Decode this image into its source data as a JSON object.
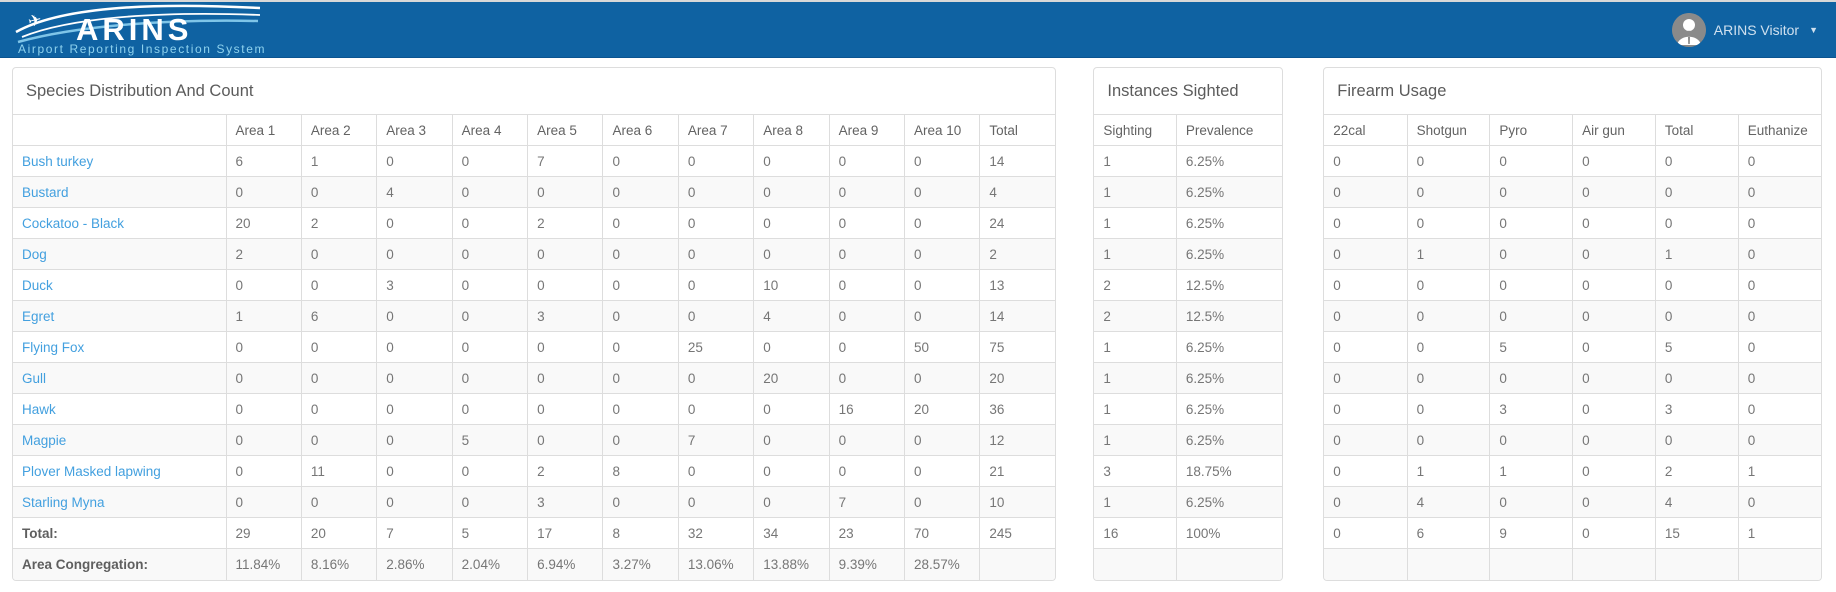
{
  "header": {
    "logo_title": "ARINS",
    "logo_subtitle": "Airport Reporting Inspection System",
    "user_label": "ARINS Visitor",
    "icons": {
      "caret_down": "▼",
      "plane": "✈",
      "avatar": "person-silhouette"
    },
    "colors": {
      "header_bg": "#0f62a2",
      "logo_accent": "#7fc5e8",
      "link_blue": "#43a0df"
    }
  },
  "species_table": {
    "title": "Species Distribution And Count",
    "columns": [
      "",
      "Area 1",
      "Area 2",
      "Area 3",
      "Area 4",
      "Area 5",
      "Area 6",
      "Area 7",
      "Area 8",
      "Area 9",
      "Area 10",
      "Total"
    ],
    "rows": [
      {
        "name": "Bush turkey",
        "values": [
          "6",
          "1",
          "0",
          "0",
          "7",
          "0",
          "0",
          "0",
          "0",
          "0",
          "14"
        ]
      },
      {
        "name": "Bustard",
        "values": [
          "0",
          "0",
          "4",
          "0",
          "0",
          "0",
          "0",
          "0",
          "0",
          "0",
          "4"
        ]
      },
      {
        "name": "Cockatoo - Black",
        "values": [
          "20",
          "2",
          "0",
          "0",
          "2",
          "0",
          "0",
          "0",
          "0",
          "0",
          "24"
        ]
      },
      {
        "name": "Dog",
        "values": [
          "2",
          "0",
          "0",
          "0",
          "0",
          "0",
          "0",
          "0",
          "0",
          "0",
          "2"
        ]
      },
      {
        "name": "Duck",
        "values": [
          "0",
          "0",
          "3",
          "0",
          "0",
          "0",
          "0",
          "10",
          "0",
          "0",
          "13"
        ]
      },
      {
        "name": "Egret",
        "values": [
          "1",
          "6",
          "0",
          "0",
          "3",
          "0",
          "0",
          "4",
          "0",
          "0",
          "14"
        ]
      },
      {
        "name": "Flying Fox",
        "values": [
          "0",
          "0",
          "0",
          "0",
          "0",
          "0",
          "25",
          "0",
          "0",
          "50",
          "75"
        ]
      },
      {
        "name": "Gull",
        "values": [
          "0",
          "0",
          "0",
          "0",
          "0",
          "0",
          "0",
          "20",
          "0",
          "0",
          "20"
        ]
      },
      {
        "name": "Hawk",
        "values": [
          "0",
          "0",
          "0",
          "0",
          "0",
          "0",
          "0",
          "0",
          "16",
          "20",
          "36"
        ]
      },
      {
        "name": "Magpie",
        "values": [
          "0",
          "0",
          "0",
          "5",
          "0",
          "0",
          "7",
          "0",
          "0",
          "0",
          "12"
        ]
      },
      {
        "name": "Plover Masked lapwing",
        "values": [
          "0",
          "11",
          "0",
          "0",
          "2",
          "8",
          "0",
          "0",
          "0",
          "0",
          "21"
        ]
      },
      {
        "name": "Starling Myna",
        "values": [
          "0",
          "0",
          "0",
          "0",
          "3",
          "0",
          "0",
          "0",
          "7",
          "0",
          "10"
        ]
      }
    ],
    "total_row": {
      "label": "Total:",
      "values": [
        "29",
        "20",
        "7",
        "5",
        "17",
        "8",
        "32",
        "34",
        "23",
        "70",
        "245"
      ]
    },
    "congregation_row": {
      "label": "Area Congregation:",
      "values": [
        "11.84%",
        "8.16%",
        "2.86%",
        "2.04%",
        "6.94%",
        "3.27%",
        "13.06%",
        "13.88%",
        "9.39%",
        "28.57%",
        ""
      ]
    }
  },
  "instances_table": {
    "title": "Instances Sighted",
    "columns": [
      "Sighting",
      "Prevalence"
    ],
    "rows": [
      [
        "1",
        "6.25%"
      ],
      [
        "1",
        "6.25%"
      ],
      [
        "1",
        "6.25%"
      ],
      [
        "1",
        "6.25%"
      ],
      [
        "2",
        "12.5%"
      ],
      [
        "2",
        "12.5%"
      ],
      [
        "1",
        "6.25%"
      ],
      [
        "1",
        "6.25%"
      ],
      [
        "1",
        "6.25%"
      ],
      [
        "1",
        "6.25%"
      ],
      [
        "3",
        "18.75%"
      ],
      [
        "1",
        "6.25%"
      ]
    ],
    "total_row": [
      "16",
      "100%"
    ],
    "empty_row": [
      "",
      ""
    ]
  },
  "firearm_table": {
    "title": "Firearm Usage",
    "columns": [
      "22cal",
      "Shotgun",
      "Pyro",
      "Air gun",
      "Total",
      "Euthanize"
    ],
    "rows": [
      [
        "0",
        "0",
        "0",
        "0",
        "0",
        "0"
      ],
      [
        "0",
        "0",
        "0",
        "0",
        "0",
        "0"
      ],
      [
        "0",
        "0",
        "0",
        "0",
        "0",
        "0"
      ],
      [
        "0",
        "1",
        "0",
        "0",
        "1",
        "0"
      ],
      [
        "0",
        "0",
        "0",
        "0",
        "0",
        "0"
      ],
      [
        "0",
        "0",
        "0",
        "0",
        "0",
        "0"
      ],
      [
        "0",
        "0",
        "5",
        "0",
        "5",
        "0"
      ],
      [
        "0",
        "0",
        "0",
        "0",
        "0",
        "0"
      ],
      [
        "0",
        "0",
        "3",
        "0",
        "3",
        "0"
      ],
      [
        "0",
        "0",
        "0",
        "0",
        "0",
        "0"
      ],
      [
        "0",
        "1",
        "1",
        "0",
        "2",
        "1"
      ],
      [
        "0",
        "4",
        "0",
        "0",
        "4",
        "0"
      ]
    ],
    "total_row": [
      "0",
      "6",
      "9",
      "0",
      "15",
      "1"
    ],
    "empty_row": [
      "",
      "",
      "",
      "",
      "",
      ""
    ]
  }
}
